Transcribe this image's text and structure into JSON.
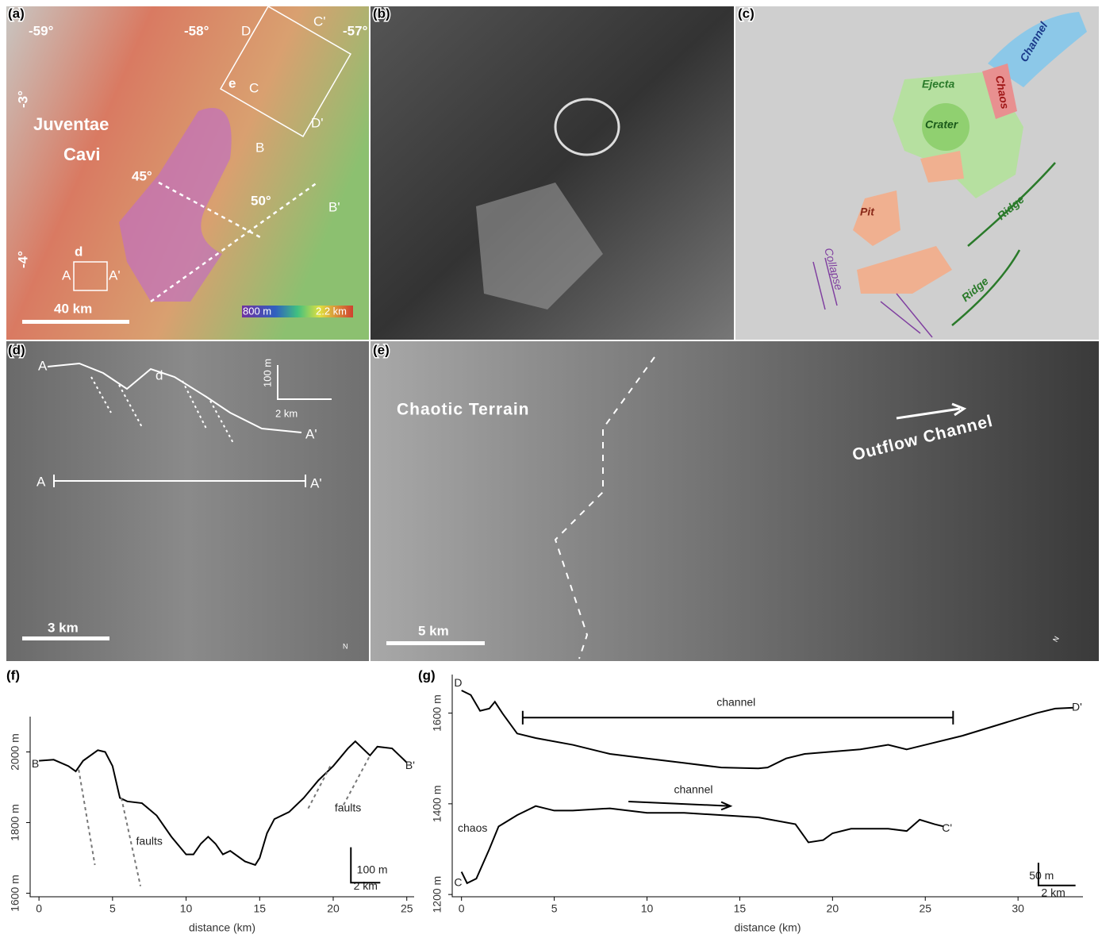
{
  "panels": {
    "a": {
      "label": "(a)",
      "lon": [
        "-59°",
        "-58°",
        "-57°"
      ],
      "lat": [
        "-3°",
        "-4°"
      ],
      "place": [
        "Juventae",
        "Cavi"
      ],
      "angles": [
        "45°",
        "50°"
      ],
      "scale": "40 km",
      "colorbar": [
        "800 m",
        "2.2 km"
      ],
      "profiles": [
        "A",
        "A'",
        "B",
        "B'",
        "C",
        "C'",
        "D",
        "D'"
      ],
      "insets": [
        "d",
        "e"
      ]
    },
    "b": {
      "label": "(b)"
    },
    "c": {
      "label": "(c)",
      "units": [
        "Channel",
        "Ejecta",
        "Chaos",
        "Crater",
        "Pit",
        "Ridge",
        "Ridge",
        "Collapse"
      ]
    },
    "d": {
      "label": "(d)",
      "profile": [
        "A",
        "A'"
      ],
      "line": [
        "A",
        "A'"
      ],
      "mark": "d",
      "vscale": "100 m",
      "hscale": "2 km",
      "scale": "3 km",
      "north": "N"
    },
    "e": {
      "label": "(e)",
      "texts": [
        "Chaotic Terrain",
        "Outflow Channel"
      ],
      "scale": "5 km",
      "north": "N"
    }
  },
  "chart_data": [
    {
      "type": "line",
      "label": "(f)",
      "xlabel": "distance (km)",
      "xlim": [
        -0.6,
        25.5
      ],
      "xticks": [
        0,
        5,
        10,
        15,
        20,
        25
      ],
      "ylim": [
        1590,
        2100
      ],
      "yticks": [
        {
          "value": 1600,
          "label": "1600 m"
        },
        {
          "value": 1800,
          "label": "1800 m"
        },
        {
          "value": 2000,
          "label": "2000 m"
        }
      ],
      "annotations": [
        "B",
        "B'",
        "faults",
        "faults",
        "100 m",
        "2 km"
      ],
      "series": [
        {
          "color": "#000000",
          "x": [
            0,
            1,
            2,
            2.5,
            3,
            4,
            4.5,
            5,
            5.5,
            6,
            7,
            8,
            9,
            10,
            10.5,
            11,
            11.5,
            12,
            12.5,
            13,
            14,
            14.7,
            15,
            15.5,
            16,
            17,
            18,
            19,
            20,
            21,
            21.5,
            22,
            22.5,
            23,
            24,
            25
          ],
          "values": [
            1975,
            1978,
            1960,
            1945,
            1975,
            2005,
            2000,
            1960,
            1870,
            1860,
            1855,
            1820,
            1760,
            1710,
            1710,
            1740,
            1760,
            1740,
            1710,
            1720,
            1690,
            1680,
            1700,
            1770,
            1810,
            1830,
            1870,
            1920,
            1960,
            2010,
            2030,
            2010,
            1990,
            2015,
            2010,
            1970
          ]
        }
      ]
    },
    {
      "type": "line",
      "label": "(g)",
      "xlabel": "distance (km)",
      "xlim": [
        -0.5,
        33.5
      ],
      "xticks": [
        0,
        5,
        10,
        15,
        20,
        25,
        30
      ],
      "ylim": [
        1195,
        1685
      ],
      "yticks": [
        {
          "value": 1200,
          "label": "1200 m"
        },
        {
          "value": 1400,
          "label": "1400 m"
        },
        {
          "value": 1600,
          "label": "1600 m"
        }
      ],
      "annotations": [
        "D",
        "D'",
        "C",
        "C'",
        "channel",
        "channel",
        "chaos",
        "50 m",
        "2 km"
      ],
      "series": [
        {
          "color": "#000000",
          "x": [
            0,
            0.5,
            1,
            1.5,
            1.8,
            2.2,
            3,
            4,
            6,
            8,
            10,
            12,
            14,
            16,
            16.5,
            17.5,
            18.5,
            20,
            21.5,
            23,
            24,
            25,
            27,
            29,
            31,
            32,
            33
          ],
          "values": [
            1650,
            1640,
            1605,
            1610,
            1625,
            1600,
            1555,
            1545,
            1530,
            1510,
            1500,
            1490,
            1480,
            1478,
            1480,
            1500,
            1510,
            1515,
            1520,
            1530,
            1520,
            1530,
            1550,
            1575,
            1600,
            1610,
            1612
          ]
        },
        {
          "color": "#000000",
          "x": [
            0,
            0.3,
            0.8,
            1.5,
            2,
            3,
            4,
            5,
            6,
            8,
            10,
            11,
            12,
            14,
            16,
            18,
            18.7,
            19.5,
            20,
            21,
            23,
            24,
            24.7,
            25.5,
            26
          ],
          "values": [
            1250,
            1225,
            1235,
            1300,
            1350,
            1375,
            1395,
            1385,
            1385,
            1390,
            1380,
            1380,
            1380,
            1375,
            1370,
            1355,
            1315,
            1320,
            1335,
            1345,
            1345,
            1340,
            1365,
            1355,
            1350
          ]
        }
      ]
    }
  ]
}
